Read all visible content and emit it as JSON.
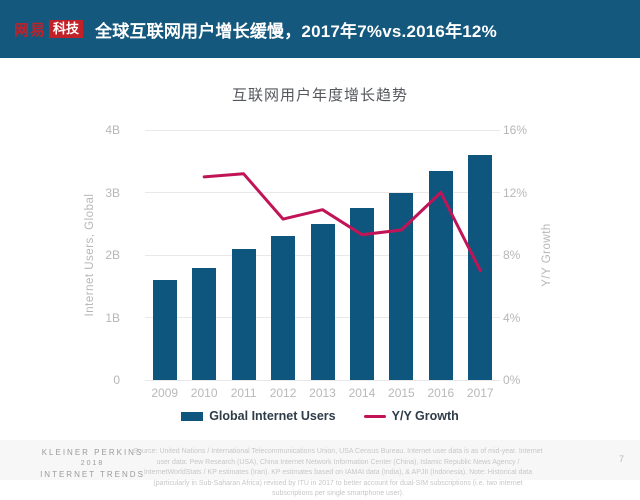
{
  "header": {
    "logo_brand": "网易",
    "logo_sub": "科技",
    "title": "全球互联网用户增长缓慢，2017年7%vs.2016年12%"
  },
  "chart_data": {
    "type": "bar",
    "combo": "bar + line",
    "title": "互联网用户年度增长趋势",
    "categories": [
      "2009",
      "2010",
      "2011",
      "2012",
      "2013",
      "2014",
      "2015",
      "2016",
      "2017"
    ],
    "series": [
      {
        "name": "Global Internet Users",
        "type": "bar",
        "axis": "left",
        "unit": "billions",
        "values": [
          1.6,
          1.8,
          2.1,
          2.3,
          2.5,
          2.75,
          3.0,
          3.35,
          3.6
        ]
      },
      {
        "name": "Y/Y Growth",
        "type": "line",
        "axis": "right",
        "unit": "%",
        "values": [
          null,
          13,
          13.2,
          10.3,
          10.9,
          9.3,
          9.6,
          12,
          7
        ]
      }
    ],
    "left_axis": {
      "label": "Internet Users, Global",
      "min": 0,
      "max": 4,
      "ticks": [
        "0",
        "1B",
        "2B",
        "3B",
        "4B"
      ]
    },
    "right_axis": {
      "label": "Y/Y Growth",
      "min": 0,
      "max": 16,
      "ticks": [
        "0%",
        "4%",
        "8%",
        "12%",
        "16%"
      ]
    },
    "grid": true,
    "legend_position": "bottom"
  },
  "colors": {
    "header_bg": "#14587d",
    "logo_red": "#c22128",
    "bar_blue": "#0f567e",
    "line_crimson": "#c11457",
    "axis_text": "#b5b7b9",
    "grid_line": "#e9e9e9"
  },
  "footer": {
    "brand_lines": [
      "KLEINER PERKINS",
      "2018",
      "INTERNET TRENDS"
    ],
    "source": "Source: United Nations / International Telecommunications Union, USA Census Bureau. Internet user data is as of mid-year. Internet user data: Pew Research (USA), China Internet Network Information Center (China), Islamic Republic News Agency / InternetWorldStats / KP estimates (Iran). KP estimates based on IAMAI data (India), & APJII (Indonesia). Note: Historical data (particularly in Sub-Saharan Africa) revised by ITU in 2017 to better account for dual-SIM subscriptions (i.e. two internet subscriptions per single smartphone user).",
    "page_number": "7"
  }
}
